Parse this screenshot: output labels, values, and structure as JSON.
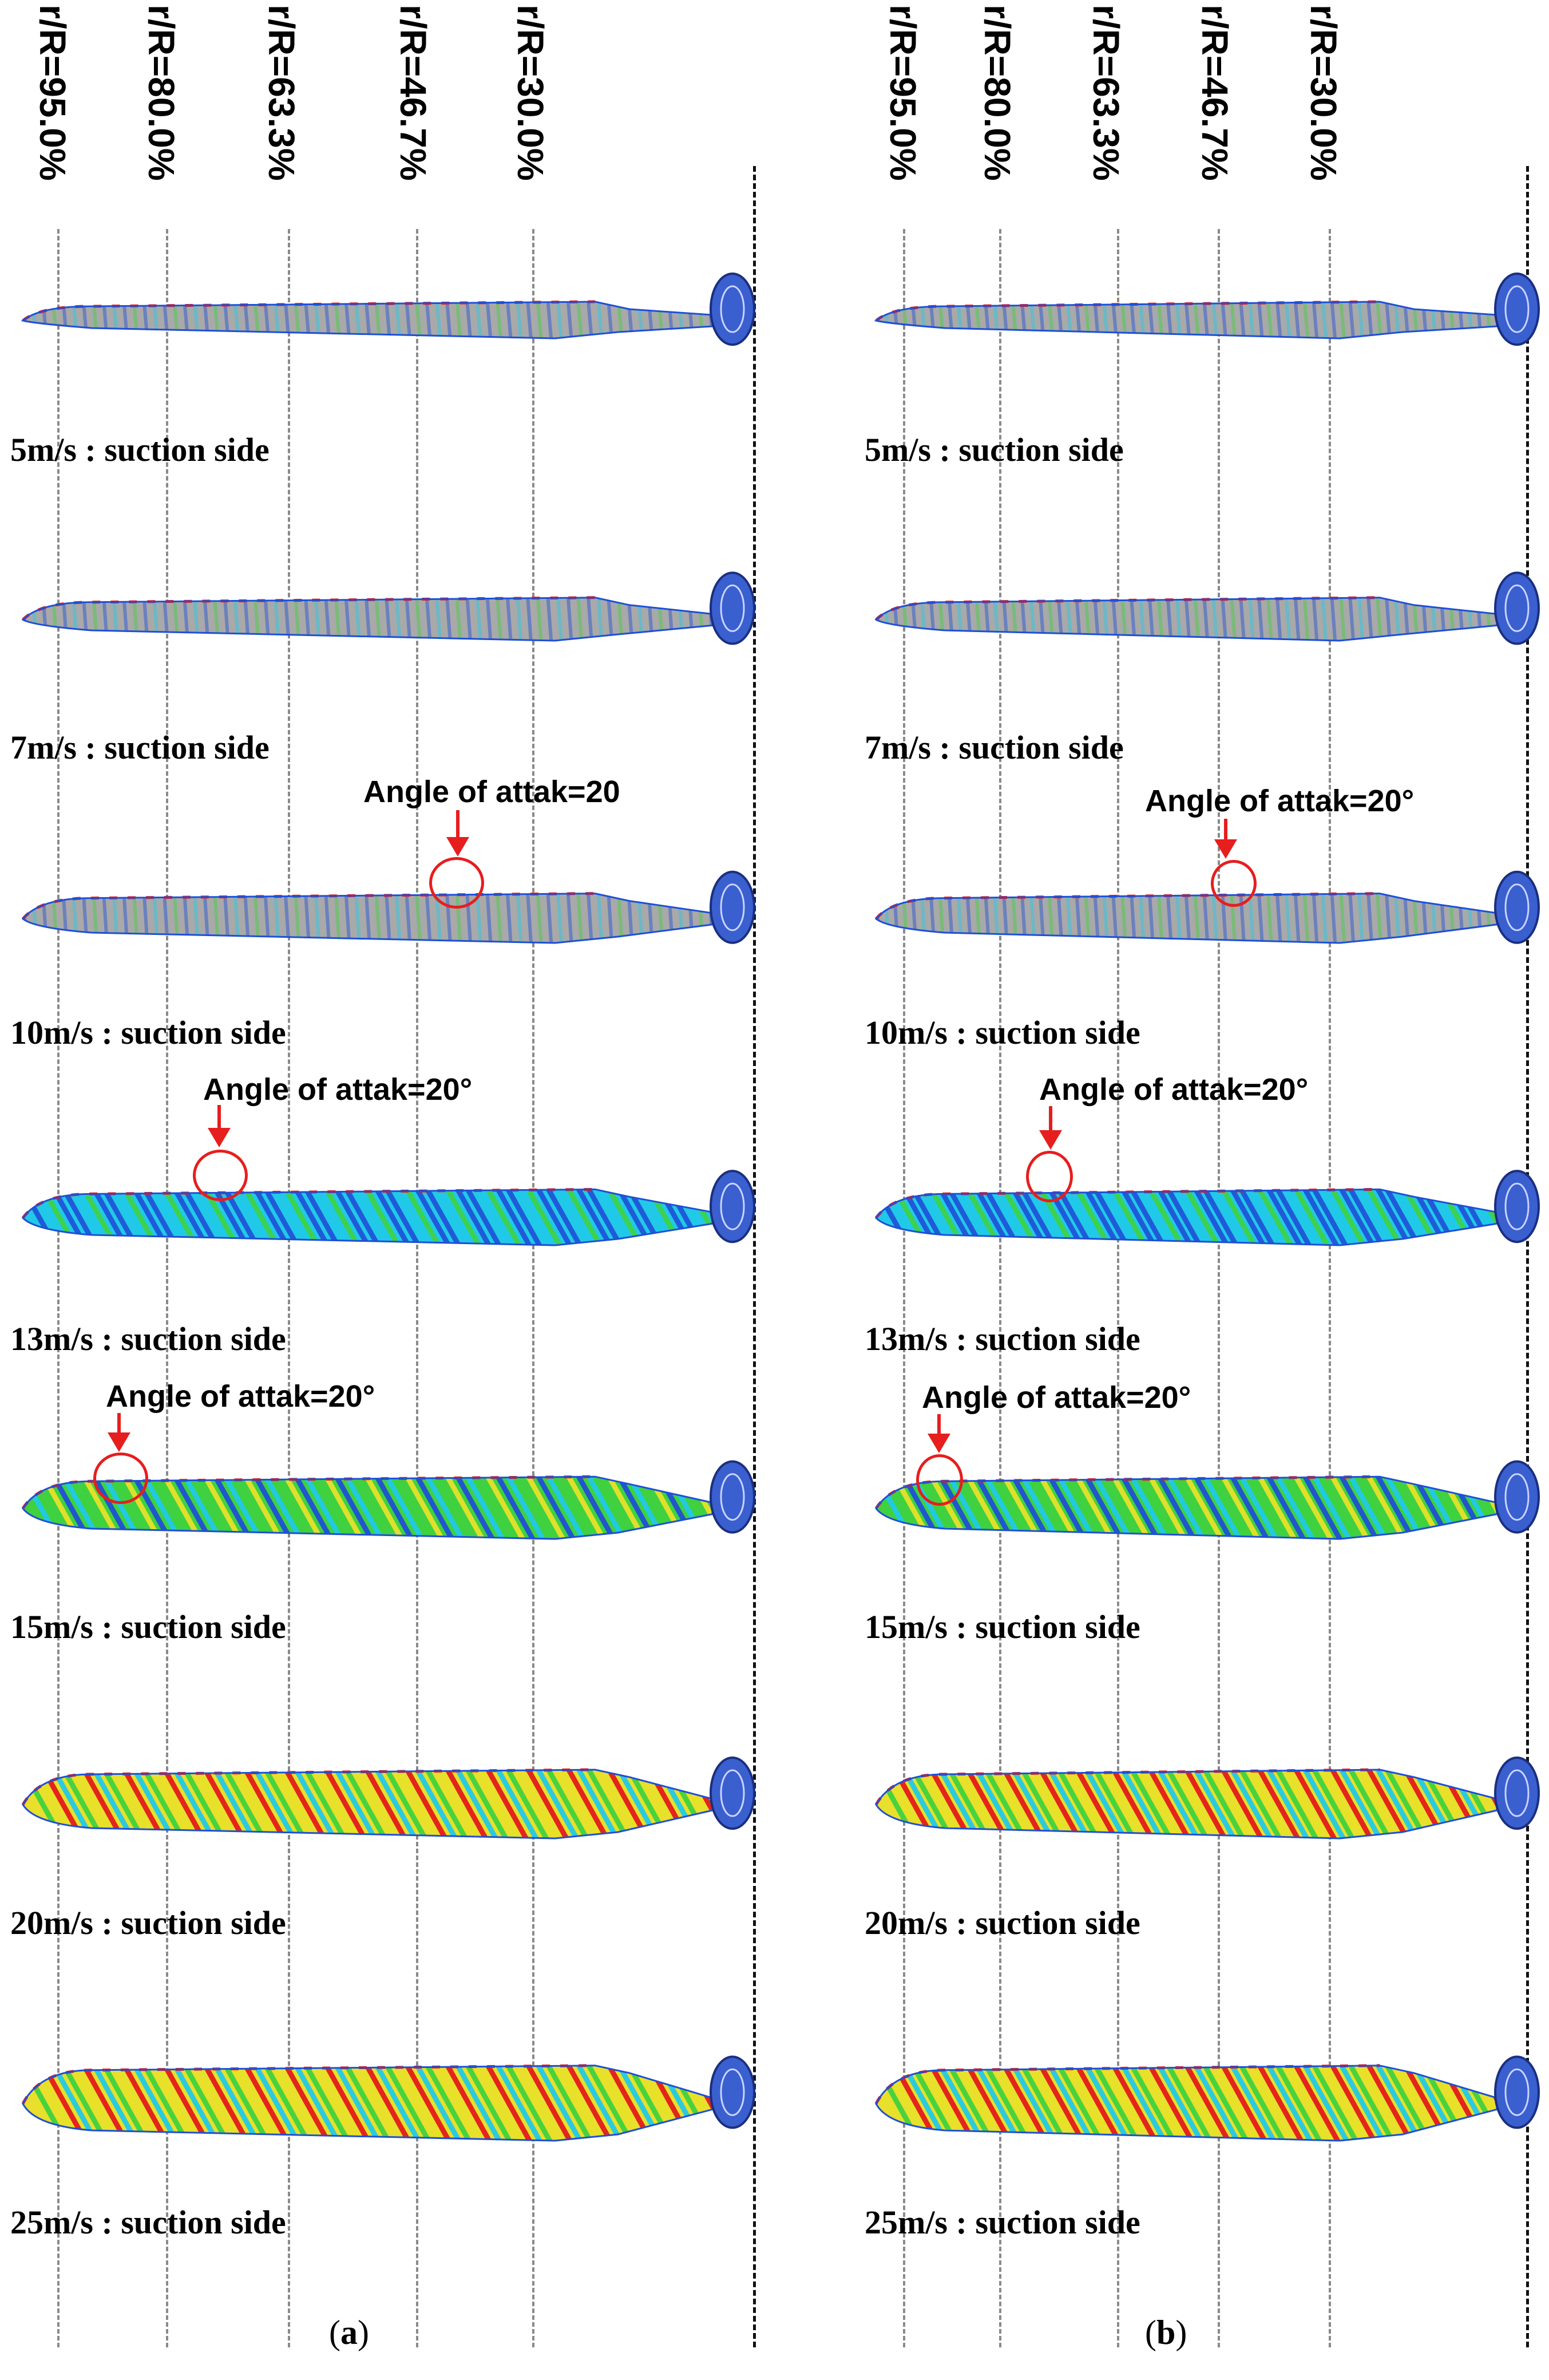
{
  "colors": {
    "guide_line": "#8a8a8a",
    "annotation": "#e61e1e",
    "blade_gray": "#a9a9a9",
    "flow_blue": "#1f4fd6",
    "flow_cyan": "#21c9e8",
    "flow_green": "#3fd13f",
    "flow_yellow": "#e8e02a",
    "flow_red": "#e31a1a",
    "hub_blue": "#3a5fcf"
  },
  "panels": [
    {
      "id": "a",
      "caption": {
        "open": "(",
        "letter": "a",
        "close": ")"
      },
      "radial_labels": [
        "r/R=95.0%",
        "r/R=80.0%",
        "r/R=63.3%",
        "r/R=46.7%",
        "r/R=30.0%"
      ],
      "cases": [
        {
          "label": "5m/s : suction side",
          "flow": "blue"
        },
        {
          "label": "7m/s : suction side",
          "flow": "blue"
        },
        {
          "label": "10m/s : suction side",
          "flow": "blue",
          "annotation": "Angle of attak=20"
        },
        {
          "label": "13m/s : suction side",
          "flow": "cyan",
          "annotation": "Angle of  attak=20°"
        },
        {
          "label": "15m/s : suction side",
          "flow": "green",
          "annotation": "Angle of  attak=20°"
        },
        {
          "label": "20m/s : suction side",
          "flow": "yellow"
        },
        {
          "label": "25m/s : suction side",
          "flow": "yellow"
        }
      ]
    },
    {
      "id": "b",
      "caption": {
        "open": "(",
        "letter": "b",
        "close": ")"
      },
      "radial_labels": [
        "r/R=95.0%",
        "r/R=80.0%",
        "r/R=63.3%",
        "r/R=46.7%",
        "r/R=30.0%"
      ],
      "cases": [
        {
          "label": "5m/s : suction side",
          "flow": "blue"
        },
        {
          "label": "7m/s : suction side",
          "flow": "blue"
        },
        {
          "label": "10m/s : suction side",
          "flow": "blue",
          "annotation": "Angle of  attak=20°"
        },
        {
          "label": "13m/s : suction side",
          "flow": "cyan",
          "annotation": "Angle of  attak=20°"
        },
        {
          "label": "15m/s : suction side",
          "flow": "green",
          "annotation": "Angle of  attak=20°"
        },
        {
          "label": "20m/s : suction side",
          "flow": "yellow"
        },
        {
          "label": "25m/s : suction side",
          "flow": "yellow"
        }
      ]
    }
  ]
}
